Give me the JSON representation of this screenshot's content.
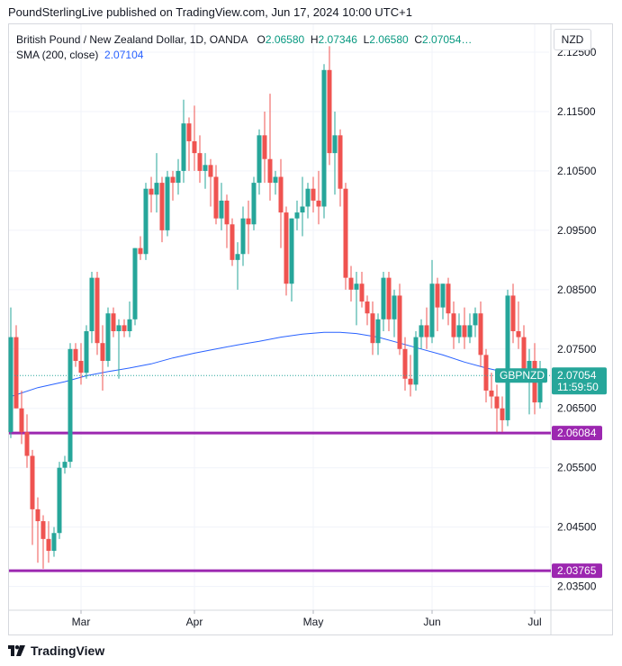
{
  "caption": "PoundSterlingLive published on TradingView.com, Jun 17, 2024 10:00 UTC+1",
  "legend": {
    "symbol": "British Pound / New Zealand Dollar, 1D, OANDA",
    "o_label": "O",
    "o_value": "2.06580",
    "h_label": "H",
    "h_value": "2.07346",
    "l_label": "L",
    "l_value": "2.06580",
    "c_label": "C",
    "c_value": "2.07054…",
    "sma_label": "SMA (200, close)",
    "sma_value": "2.07104"
  },
  "currency_button": "NZD",
  "footer": {
    "brand": "TradingView",
    "logo_icon": "tradingview-logo-icon"
  },
  "colors": {
    "up": "#26a69a",
    "down": "#ef5350",
    "sma": "#2962ff",
    "level": "#9c27b0",
    "grid": "#f0f3fa"
  },
  "chart_data": {
    "type": "candlestick",
    "symbol_tag": "GBPNZD",
    "last_price": "2.07054",
    "countdown": "11:59:50",
    "y_ticks": [
      "2.12500",
      "2.11500",
      "2.10500",
      "2.09500",
      "2.08500",
      "2.07500",
      "2.06500",
      "2.05500",
      "2.04500",
      "2.03500"
    ],
    "ylim": [
      2.031,
      2.1297
    ],
    "x_ticks": [
      {
        "label": "Mar",
        "index": 13
      },
      {
        "label": "Apr",
        "index": 34
      },
      {
        "label": "May",
        "index": 56
      },
      {
        "label": "Jun",
        "index": 78
      },
      {
        "label": "Jul",
        "index": 97
      }
    ],
    "horizontal_levels": [
      {
        "label": "2.06084",
        "value": 2.06084
      },
      {
        "label": "2.03765",
        "value": 2.03765
      }
    ],
    "candles": [
      {
        "o": 2.061,
        "h": 2.082,
        "l": 2.06,
        "c": 2.077
      },
      {
        "o": 2.077,
        "h": 2.079,
        "l": 2.065,
        "c": 2.065
      },
      {
        "o": 2.065,
        "h": 2.068,
        "l": 2.059,
        "c": 2.061
      },
      {
        "o": 2.061,
        "h": 2.064,
        "l": 2.055,
        "c": 2.057
      },
      {
        "o": 2.057,
        "h": 2.058,
        "l": 2.042,
        "c": 2.048
      },
      {
        "o": 2.048,
        "h": 2.05,
        "l": 2.039,
        "c": 2.046
      },
      {
        "o": 2.046,
        "h": 2.047,
        "l": 2.038,
        "c": 2.043
      },
      {
        "o": 2.043,
        "h": 2.046,
        "l": 2.039,
        "c": 2.041
      },
      {
        "o": 2.041,
        "h": 2.045,
        "l": 2.04,
        "c": 2.044
      },
      {
        "o": 2.044,
        "h": 2.056,
        "l": 2.043,
        "c": 2.055
      },
      {
        "o": 2.055,
        "h": 2.057,
        "l": 2.054,
        "c": 2.056
      },
      {
        "o": 2.056,
        "h": 2.076,
        "l": 2.055,
        "c": 2.075
      },
      {
        "o": 2.075,
        "h": 2.076,
        "l": 2.072,
        "c": 2.073
      },
      {
        "o": 2.073,
        "h": 2.076,
        "l": 2.069,
        "c": 2.071
      },
      {
        "o": 2.071,
        "h": 2.079,
        "l": 2.07,
        "c": 2.078
      },
      {
        "o": 2.078,
        "h": 2.088,
        "l": 2.076,
        "c": 2.087
      },
      {
        "o": 2.087,
        "h": 2.088,
        "l": 2.074,
        "c": 2.076
      },
      {
        "o": 2.076,
        "h": 2.079,
        "l": 2.068,
        "c": 2.073
      },
      {
        "o": 2.073,
        "h": 2.082,
        "l": 2.072,
        "c": 2.081
      },
      {
        "o": 2.081,
        "h": 2.082,
        "l": 2.077,
        "c": 2.078
      },
      {
        "o": 2.078,
        "h": 2.08,
        "l": 2.07,
        "c": 2.079
      },
      {
        "o": 2.079,
        "h": 2.08,
        "l": 2.077,
        "c": 2.078
      },
      {
        "o": 2.078,
        "h": 2.083,
        "l": 2.077,
        "c": 2.08
      },
      {
        "o": 2.08,
        "h": 2.092,
        "l": 2.079,
        "c": 2.092
      },
      {
        "o": 2.092,
        "h": 2.094,
        "l": 2.09,
        "c": 2.091
      },
      {
        "o": 2.091,
        "h": 2.103,
        "l": 2.09,
        "c": 2.102
      },
      {
        "o": 2.102,
        "h": 2.104,
        "l": 2.098,
        "c": 2.101
      },
      {
        "o": 2.101,
        "h": 2.108,
        "l": 2.098,
        "c": 2.103
      },
      {
        "o": 2.103,
        "h": 2.104,
        "l": 2.093,
        "c": 2.095
      },
      {
        "o": 2.095,
        "h": 2.105,
        "l": 2.094,
        "c": 2.104
      },
      {
        "o": 2.104,
        "h": 2.105,
        "l": 2.1,
        "c": 2.103
      },
      {
        "o": 2.103,
        "h": 2.107,
        "l": 2.101,
        "c": 2.105
      },
      {
        "o": 2.105,
        "h": 2.117,
        "l": 2.103,
        "c": 2.113
      },
      {
        "o": 2.113,
        "h": 2.114,
        "l": 2.105,
        "c": 2.11
      },
      {
        "o": 2.11,
        "h": 2.116,
        "l": 2.105,
        "c": 2.108
      },
      {
        "o": 2.108,
        "h": 2.111,
        "l": 2.103,
        "c": 2.105
      },
      {
        "o": 2.105,
        "h": 2.108,
        "l": 2.102,
        "c": 2.106
      },
      {
        "o": 2.106,
        "h": 2.107,
        "l": 2.099,
        "c": 2.104
      },
      {
        "o": 2.104,
        "h": 2.106,
        "l": 2.096,
        "c": 2.097
      },
      {
        "o": 2.097,
        "h": 2.103,
        "l": 2.095,
        "c": 2.1
      },
      {
        "o": 2.1,
        "h": 2.101,
        "l": 2.092,
        "c": 2.096
      },
      {
        "o": 2.096,
        "h": 2.097,
        "l": 2.089,
        "c": 2.09
      },
      {
        "o": 2.09,
        "h": 2.093,
        "l": 2.085,
        "c": 2.091
      },
      {
        "o": 2.091,
        "h": 2.099,
        "l": 2.089,
        "c": 2.097
      },
      {
        "o": 2.097,
        "h": 2.1,
        "l": 2.091,
        "c": 2.096
      },
      {
        "o": 2.096,
        "h": 2.104,
        "l": 2.095,
        "c": 2.103
      },
      {
        "o": 2.103,
        "h": 2.112,
        "l": 2.101,
        "c": 2.111
      },
      {
        "o": 2.111,
        "h": 2.115,
        "l": 2.103,
        "c": 2.107
      },
      {
        "o": 2.107,
        "h": 2.118,
        "l": 2.1,
        "c": 2.103
      },
      {
        "o": 2.103,
        "h": 2.105,
        "l": 2.101,
        "c": 2.104
      },
      {
        "o": 2.104,
        "h": 2.107,
        "l": 2.092,
        "c": 2.098
      },
      {
        "o": 2.098,
        "h": 2.099,
        "l": 2.084,
        "c": 2.086
      },
      {
        "o": 2.086,
        "h": 2.097,
        "l": 2.083,
        "c": 2.097
      },
      {
        "o": 2.097,
        "h": 2.1,
        "l": 2.095,
        "c": 2.098
      },
      {
        "o": 2.098,
        "h": 2.104,
        "l": 2.094,
        "c": 2.099
      },
      {
        "o": 2.099,
        "h": 2.103,
        "l": 2.097,
        "c": 2.102
      },
      {
        "o": 2.102,
        "h": 2.104,
        "l": 2.098,
        "c": 2.1
      },
      {
        "o": 2.1,
        "h": 2.105,
        "l": 2.096,
        "c": 2.099
      },
      {
        "o": 2.099,
        "h": 2.123,
        "l": 2.097,
        "c": 2.122
      },
      {
        "o": 2.122,
        "h": 2.126,
        "l": 2.106,
        "c": 2.108
      },
      {
        "o": 2.108,
        "h": 2.115,
        "l": 2.101,
        "c": 2.111
      },
      {
        "o": 2.111,
        "h": 2.112,
        "l": 2.099,
        "c": 2.102
      },
      {
        "o": 2.102,
        "h": 2.103,
        "l": 2.085,
        "c": 2.087
      },
      {
        "o": 2.087,
        "h": 2.089,
        "l": 2.083,
        "c": 2.085
      },
      {
        "o": 2.085,
        "h": 2.088,
        "l": 2.079,
        "c": 2.086
      },
      {
        "o": 2.086,
        "h": 2.088,
        "l": 2.082,
        "c": 2.083
      },
      {
        "o": 2.083,
        "h": 2.084,
        "l": 2.079,
        "c": 2.081
      },
      {
        "o": 2.081,
        "h": 2.083,
        "l": 2.074,
        "c": 2.076
      },
      {
        "o": 2.076,
        "h": 2.081,
        "l": 2.074,
        "c": 2.08
      },
      {
        "o": 2.08,
        "h": 2.088,
        "l": 2.078,
        "c": 2.087
      },
      {
        "o": 2.087,
        "h": 2.088,
        "l": 2.078,
        "c": 2.08
      },
      {
        "o": 2.08,
        "h": 2.085,
        "l": 2.077,
        "c": 2.084
      },
      {
        "o": 2.084,
        "h": 2.086,
        "l": 2.074,
        "c": 2.075
      },
      {
        "o": 2.075,
        "h": 2.077,
        "l": 2.068,
        "c": 2.07
      },
      {
        "o": 2.07,
        "h": 2.074,
        "l": 2.067,
        "c": 2.069
      },
      {
        "o": 2.069,
        "h": 2.078,
        "l": 2.068,
        "c": 2.077
      },
      {
        "o": 2.077,
        "h": 2.08,
        "l": 2.075,
        "c": 2.079
      },
      {
        "o": 2.079,
        "h": 2.082,
        "l": 2.075,
        "c": 2.077
      },
      {
        "o": 2.077,
        "h": 2.09,
        "l": 2.076,
        "c": 2.086
      },
      {
        "o": 2.086,
        "h": 2.087,
        "l": 2.078,
        "c": 2.082
      },
      {
        "o": 2.082,
        "h": 2.086,
        "l": 2.08,
        "c": 2.086
      },
      {
        "o": 2.086,
        "h": 2.087,
        "l": 2.079,
        "c": 2.081
      },
      {
        "o": 2.081,
        "h": 2.083,
        "l": 2.075,
        "c": 2.077
      },
      {
        "o": 2.077,
        "h": 2.081,
        "l": 2.076,
        "c": 2.079
      },
      {
        "o": 2.079,
        "h": 2.082,
        "l": 2.075,
        "c": 2.077
      },
      {
        "o": 2.077,
        "h": 2.081,
        "l": 2.076,
        "c": 2.079
      },
      {
        "o": 2.079,
        "h": 2.082,
        "l": 2.077,
        "c": 2.081
      },
      {
        "o": 2.081,
        "h": 2.083,
        "l": 2.072,
        "c": 2.074
      },
      {
        "o": 2.074,
        "h": 2.075,
        "l": 2.066,
        "c": 2.068
      },
      {
        "o": 2.068,
        "h": 2.071,
        "l": 2.065,
        "c": 2.067
      },
      {
        "o": 2.067,
        "h": 2.069,
        "l": 2.061,
        "c": 2.065
      },
      {
        "o": 2.065,
        "h": 2.067,
        "l": 2.061,
        "c": 2.063
      },
      {
        "o": 2.063,
        "h": 2.085,
        "l": 2.062,
        "c": 2.084
      },
      {
        "o": 2.084,
        "h": 2.086,
        "l": 2.076,
        "c": 2.078
      },
      {
        "o": 2.078,
        "h": 2.083,
        "l": 2.075,
        "c": 2.077
      },
      {
        "o": 2.077,
        "h": 2.079,
        "l": 2.07,
        "c": 2.071
      },
      {
        "o": 2.071,
        "h": 2.075,
        "l": 2.064,
        "c": 2.073
      },
      {
        "o": 2.073,
        "h": 2.076,
        "l": 2.064,
        "c": 2.066
      },
      {
        "o": 2.066,
        "h": 2.073,
        "l": 2.065,
        "c": 2.071
      }
    ],
    "sma": [
      {
        "i": 0,
        "v": 2.067
      },
      {
        "i": 5,
        "v": 2.0685
      },
      {
        "i": 10,
        "v": 2.0695
      },
      {
        "i": 14,
        "v": 2.0705
      },
      {
        "i": 18,
        "v": 2.0712
      },
      {
        "i": 22,
        "v": 2.0718
      },
      {
        "i": 26,
        "v": 2.0725
      },
      {
        "i": 30,
        "v": 2.0735
      },
      {
        "i": 34,
        "v": 2.0743
      },
      {
        "i": 38,
        "v": 2.075
      },
      {
        "i": 42,
        "v": 2.0757
      },
      {
        "i": 46,
        "v": 2.0763
      },
      {
        "i": 50,
        "v": 2.077
      },
      {
        "i": 54,
        "v": 2.0775
      },
      {
        "i": 58,
        "v": 2.0778
      },
      {
        "i": 61,
        "v": 2.0778
      },
      {
        "i": 64,
        "v": 2.0776
      },
      {
        "i": 68,
        "v": 2.077
      },
      {
        "i": 72,
        "v": 2.076
      },
      {
        "i": 76,
        "v": 2.075
      },
      {
        "i": 80,
        "v": 2.074
      },
      {
        "i": 84,
        "v": 2.0728
      },
      {
        "i": 88,
        "v": 2.0718
      },
      {
        "i": 92,
        "v": 2.071
      }
    ]
  }
}
